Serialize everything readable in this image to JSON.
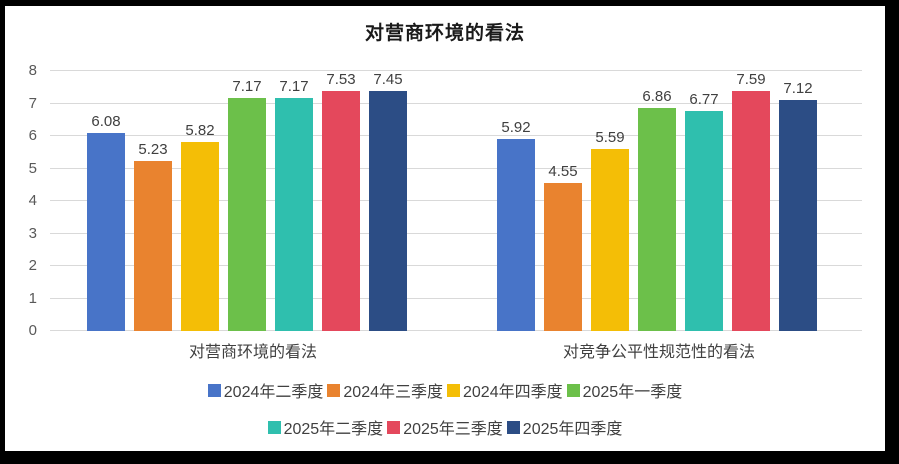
{
  "chart_data": {
    "type": "bar",
    "title": "对营商环境的看法",
    "categories": [
      "对营商环境的看法",
      "对竞争公平性规范性的看法"
    ],
    "series": [
      {
        "name": "2024年二季度",
        "color": "#4874C8",
        "values": [
          6.08,
          5.92
        ]
      },
      {
        "name": "2024年三季度",
        "color": "#E9832F",
        "values": [
          5.23,
          4.55
        ]
      },
      {
        "name": "2024年四季度",
        "color": "#F4BE06",
        "values": [
          5.82,
          5.59
        ]
      },
      {
        "name": "2025年一季度",
        "color": "#6CC04A",
        "values": [
          7.17,
          6.86
        ]
      },
      {
        "name": "2025年二季度",
        "color": "#2FBFAE",
        "values": [
          7.17,
          6.77
        ]
      },
      {
        "name": "2025年三季度",
        "color": "#E4485C",
        "values": [
          7.53,
          7.59
        ]
      },
      {
        "name": "2025年四季度",
        "color": "#2C4D85",
        "values": [
          7.45,
          7.12
        ]
      }
    ],
    "ylim": [
      0,
      8
    ],
    "yticks": [
      0,
      1,
      2,
      3,
      4,
      5,
      6,
      7,
      8
    ],
    "grid": true,
    "legend_position": "bottom",
    "value_labels_decimals": 2,
    "colors": {
      "gridline": "#d9d9d9",
      "axis_text": "#595959",
      "label_text": "#404040",
      "frame_border": "#000000"
    }
  }
}
